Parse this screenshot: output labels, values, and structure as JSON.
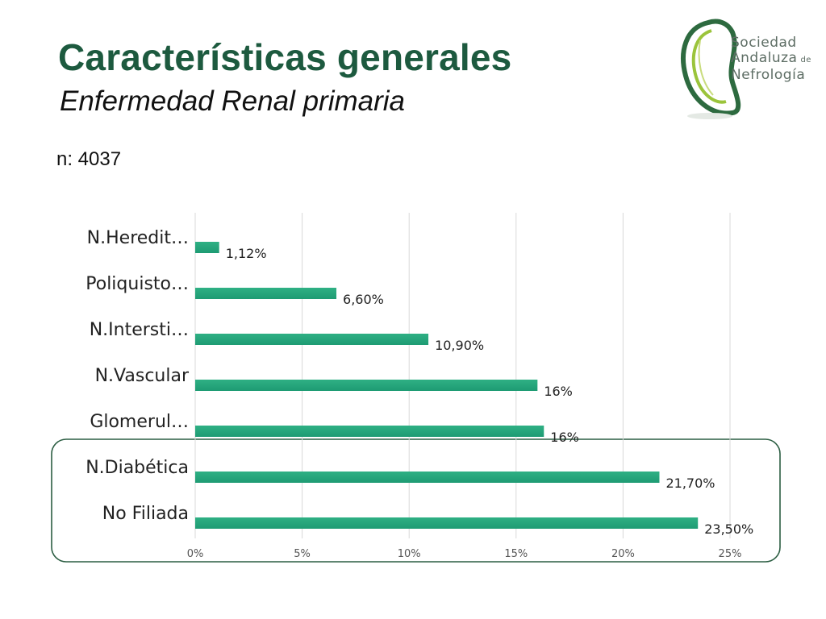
{
  "header": {
    "title": "Características generales",
    "subtitle": "Enfermedad Renal primaria",
    "n_label": "n: 4037"
  },
  "logo": {
    "line1": "Sociedad",
    "line2": "Andaluza",
    "line2_suffix": "de",
    "line3": "Nefrología"
  },
  "colors": {
    "title": "#1d5a3f",
    "bar": "#1e9b73",
    "highlight_border": "#2c5e43",
    "grid": "#d9d9d9"
  },
  "chart_data": {
    "type": "bar",
    "orientation": "horizontal",
    "categories": [
      "N.Heredit…",
      "Poliquisto…",
      "N.Intersti…",
      "N.Vascular",
      "Glomerul…",
      "N.Diabética",
      "No Filiada"
    ],
    "values": [
      1.12,
      6.6,
      10.9,
      16,
      16.3,
      21.7,
      23.5
    ],
    "value_labels": [
      "1,12%",
      "6,60%",
      "10,90%",
      "16%",
      "16%",
      "21,70%",
      "23,50%"
    ],
    "xlim": [
      0,
      25
    ],
    "xticks": [
      0,
      5,
      10,
      15,
      20,
      25
    ],
    "xtick_labels": [
      "0%",
      "5%",
      "10%",
      "15%",
      "20%",
      "25%"
    ],
    "grid": true,
    "highlighted_categories": [
      "N.Diabética",
      "No Filiada"
    ]
  }
}
